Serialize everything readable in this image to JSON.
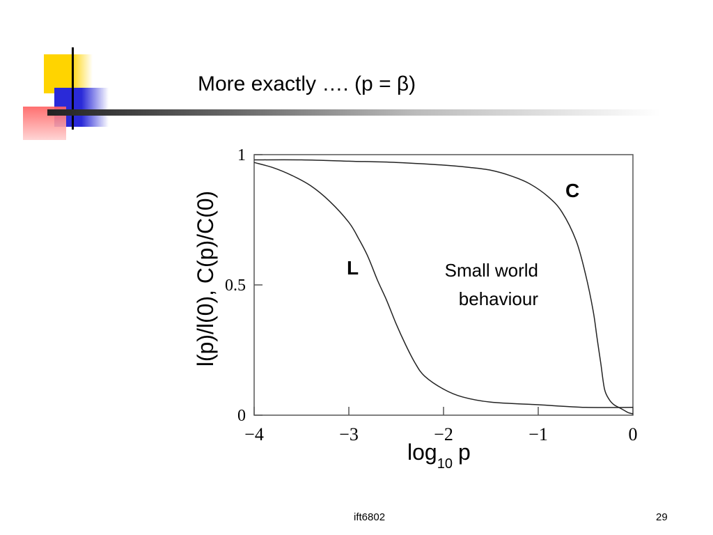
{
  "slide": {
    "title": "More exactly …. (p = β)",
    "footer_left": "ift6802",
    "page_number": "29"
  },
  "chart_data": {
    "type": "line",
    "ylabel": "l(p)/l(0), C(p)/C(0)",
    "xlabel_base": "log",
    "xlabel_sub": "10",
    "xlabel_var": "p",
    "xlim": [
      -4,
      0
    ],
    "ylim": [
      0,
      1
    ],
    "x_ticks": [
      -4,
      -3,
      -2,
      -1,
      0
    ],
    "x_tick_labels": [
      "−4",
      "−3",
      "−2",
      "−1",
      "0"
    ],
    "y_ticks": [
      0,
      0.5,
      1
    ],
    "y_tick_labels": [
      "0",
      "0.5",
      "1"
    ],
    "grid": false,
    "series": [
      {
        "name": "C",
        "x": [
          -4,
          -3.5,
          -3,
          -2.5,
          -2,
          -1.7,
          -1.5,
          -1.3,
          -1.1,
          -0.9,
          -0.75,
          -0.6,
          -0.5,
          -0.42,
          -0.38,
          -0.34,
          -0.3,
          -0.25,
          -0.2,
          -0.15,
          -0.1,
          -0.05,
          0
        ],
        "y": [
          0.98,
          0.98,
          0.975,
          0.97,
          0.96,
          0.95,
          0.94,
          0.92,
          0.89,
          0.84,
          0.78,
          0.67,
          0.54,
          0.4,
          0.3,
          0.2,
          0.1,
          0.06,
          0.04,
          0.03,
          0.02,
          0.01,
          0.005
        ]
      },
      {
        "name": "L",
        "x": [
          -4,
          -3.8,
          -3.6,
          -3.4,
          -3.2,
          -3.0,
          -2.9,
          -2.8,
          -2.7,
          -2.6,
          -2.5,
          -2.4,
          -2.3,
          -2.2,
          -2.0,
          -1.8,
          -1.5,
          -1.0,
          -0.5,
          0
        ],
        "y": [
          0.97,
          0.95,
          0.92,
          0.88,
          0.82,
          0.74,
          0.68,
          0.61,
          0.52,
          0.44,
          0.35,
          0.27,
          0.2,
          0.15,
          0.1,
          0.07,
          0.05,
          0.04,
          0.03,
          0.03
        ]
      }
    ],
    "annotation": "Small world behaviour",
    "annotation_line1": "Small world",
    "annotation_line2": "behaviour"
  }
}
